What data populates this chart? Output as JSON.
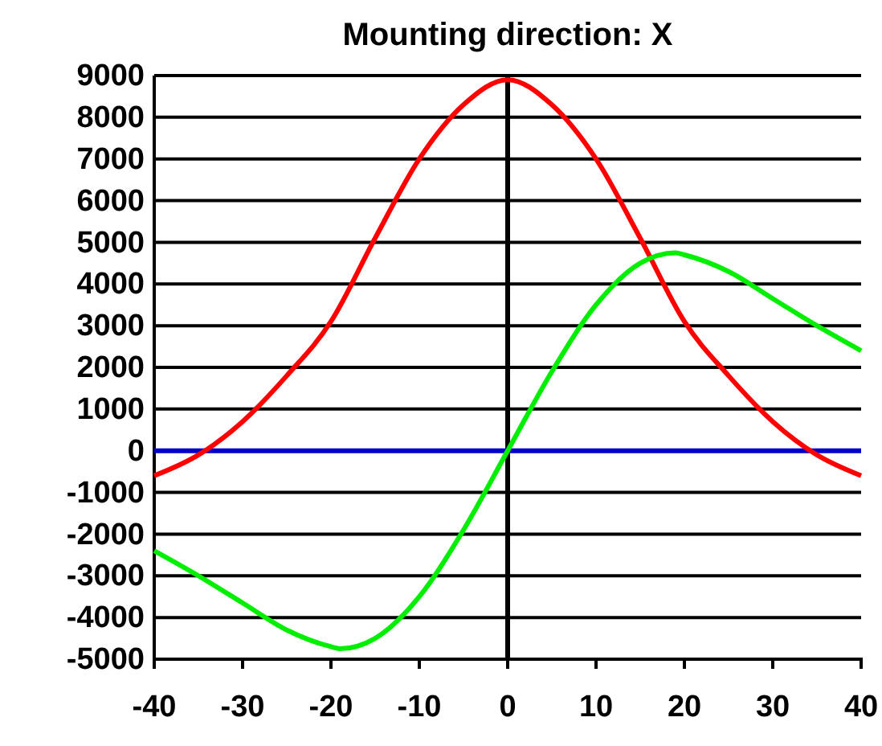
{
  "chart_data": {
    "type": "line",
    "title": "Mounting direction: X",
    "xlim": [
      -40,
      40
    ],
    "xticks": [
      -40,
      -30,
      -20,
      -10,
      0,
      10,
      20,
      30,
      40
    ],
    "ylim": [
      -5000,
      9000
    ],
    "yticks": [
      -5000,
      -4000,
      -3000,
      -2000,
      -1000,
      0,
      1000,
      2000,
      3000,
      4000,
      5000,
      6000,
      7000,
      8000,
      9000
    ],
    "grid": "y",
    "marker": "none",
    "line_style": "solid",
    "ref_lines": [
      {
        "axis": "x",
        "value": 0,
        "color": "#000000"
      },
      {
        "axis": "y",
        "value": 0,
        "color": "#0000cc"
      }
    ],
    "series": [
      {
        "color": "#ff0000",
        "x": [
          -40,
          -35,
          -30,
          -25,
          -20,
          -15,
          -10,
          -5,
          0,
          5,
          10,
          15,
          20,
          25,
          30,
          35,
          40
        ],
        "values": [
          -600,
          -100,
          700,
          1800,
          3100,
          5100,
          7000,
          8300,
          8900,
          8300,
          7000,
          5100,
          3100,
          1800,
          700,
          -100,
          -600
        ]
      },
      {
        "color": "#00ee00",
        "x": [
          -40,
          -35,
          -30,
          -25,
          -20,
          -19,
          -15,
          -10,
          -5,
          0,
          5,
          10,
          15,
          19,
          20,
          25,
          30,
          35,
          40
        ],
        "values": [
          -2400,
          -3000,
          -3650,
          -4300,
          -4700,
          -4750,
          -4500,
          -3500,
          -1900,
          0,
          1900,
          3500,
          4500,
          4750,
          4700,
          4300,
          3650,
          3000,
          2400
        ]
      }
    ]
  }
}
